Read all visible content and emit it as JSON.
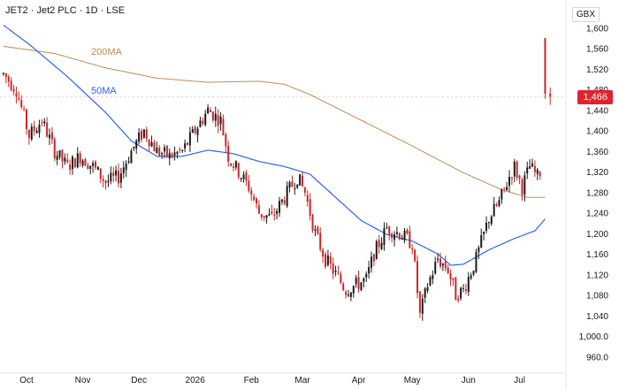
{
  "header": {
    "title": "JET2 · Jet2 PLC · 1D · LSE",
    "currency": "GBX"
  },
  "colors": {
    "up": "#26a69a",
    "down": "#c0392b",
    "candle_up": "#1a1a1a",
    "candle_down": "#c62828",
    "ma50": "#2962ff",
    "ma200": "#c28b52",
    "price_tag": "#e0232e"
  },
  "chart_data": {
    "type": "candlestick",
    "title": "JET2 · Jet2 PLC · 1D · LSE",
    "ylabel": "GBX",
    "ylim": [
      935,
      1630
    ],
    "y_ticks": [
      "1,600",
      "1,560",
      "1,520",
      "1,480",
      "1,440",
      "1,400",
      "1,360",
      "1,320",
      "1,280",
      "1,240",
      "1,200",
      "1,160",
      "1,120",
      "1,080",
      "1,040",
      "1,000.0",
      "960.0"
    ],
    "y_tick_values": [
      1600,
      1560,
      1520,
      1480,
      1440,
      1400,
      1360,
      1320,
      1280,
      1240,
      1200,
      1160,
      1120,
      1080,
      1040,
      1000,
      960
    ],
    "x_ticks": [
      "Oct",
      "Nov",
      "Dec",
      "2026",
      "Feb",
      "Mar",
      "Apr",
      "May",
      "Jun",
      "Jul"
    ],
    "x_tick_index": [
      9,
      31,
      53,
      75,
      97,
      117,
      139,
      160,
      182,
      202
    ],
    "last_price_label": "1,466",
    "last_price": 1466,
    "series": [
      {
        "name": "200MA",
        "type": "line",
        "anchors": [
          [
            0,
            1564
          ],
          [
            20,
            1550
          ],
          [
            40,
            1522
          ],
          [
            60,
            1502
          ],
          [
            80,
            1494
          ],
          [
            100,
            1496
          ],
          [
            110,
            1490
          ],
          [
            120,
            1470
          ],
          [
            140,
            1420
          ],
          [
            160,
            1370
          ],
          [
            180,
            1318
          ],
          [
            195,
            1285
          ],
          [
            205,
            1270
          ],
          [
            212,
            1270
          ]
        ]
      },
      {
        "name": "50MA",
        "type": "line",
        "anchors": [
          [
            0,
            1605
          ],
          [
            10,
            1568
          ],
          [
            25,
            1505
          ],
          [
            40,
            1435
          ],
          [
            50,
            1380
          ],
          [
            60,
            1350
          ],
          [
            70,
            1350
          ],
          [
            80,
            1362
          ],
          [
            90,
            1355
          ],
          [
            100,
            1340
          ],
          [
            110,
            1330
          ],
          [
            120,
            1315
          ],
          [
            130,
            1270
          ],
          [
            140,
            1225
          ],
          [
            150,
            1198
          ],
          [
            160,
            1185
          ],
          [
            170,
            1160
          ],
          [
            175,
            1138
          ],
          [
            180,
            1140
          ],
          [
            190,
            1168
          ],
          [
            200,
            1190
          ],
          [
            208,
            1205
          ],
          [
            212,
            1228
          ]
        ]
      },
      {
        "name": "price",
        "type": "candlestick",
        "anchors": [
          [
            0,
            1510
          ],
          [
            5,
            1480
          ],
          [
            10,
            1390
          ],
          [
            15,
            1420
          ],
          [
            20,
            1360
          ],
          [
            25,
            1330
          ],
          [
            30,
            1350
          ],
          [
            35,
            1330
          ],
          [
            40,
            1300
          ],
          [
            45,
            1310
          ],
          [
            50,
            1360
          ],
          [
            55,
            1400
          ],
          [
            60,
            1360
          ],
          [
            65,
            1350
          ],
          [
            70,
            1360
          ],
          [
            75,
            1400
          ],
          [
            80,
            1440
          ],
          [
            85,
            1420
          ],
          [
            88,
            1350
          ],
          [
            92,
            1320
          ],
          [
            96,
            1290
          ],
          [
            100,
            1240
          ],
          [
            105,
            1230
          ],
          [
            110,
            1270
          ],
          [
            115,
            1310
          ],
          [
            118,
            1280
          ],
          [
            122,
            1200
          ],
          [
            126,
            1150
          ],
          [
            130,
            1120
          ],
          [
            134,
            1090
          ],
          [
            138,
            1100
          ],
          [
            142,
            1110
          ],
          [
            145,
            1160
          ],
          [
            150,
            1210
          ],
          [
            155,
            1200
          ],
          [
            160,
            1180
          ],
          [
            163,
            1040
          ],
          [
            166,
            1100
          ],
          [
            170,
            1150
          ],
          [
            174,
            1130
          ],
          [
            177,
            1080
          ],
          [
            180,
            1090
          ],
          [
            185,
            1150
          ],
          [
            190,
            1230
          ],
          [
            194,
            1260
          ],
          [
            198,
            1310
          ],
          [
            200,
            1330
          ],
          [
            203,
            1290
          ],
          [
            206,
            1330
          ],
          [
            209,
            1310
          ],
          [
            212,
            1340
          ]
        ]
      },
      {
        "name": "last-bars",
        "type": "candlestick",
        "ohlc": [
          [
            1580,
            1580,
            1462,
            1472
          ],
          [
            1472,
            1484,
            1450,
            1466
          ]
        ]
      }
    ]
  }
}
